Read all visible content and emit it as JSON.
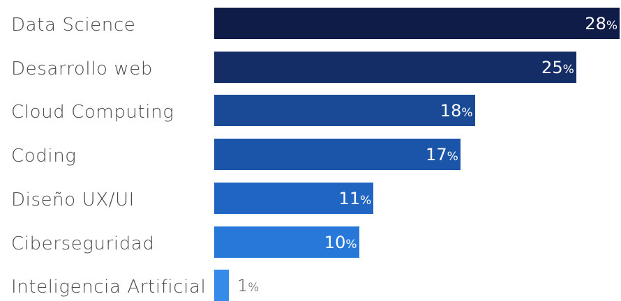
{
  "chart_data": {
    "type": "bar",
    "orientation": "horizontal",
    "title": "",
    "xlabel": "",
    "ylabel": "",
    "categories": [
      "Data Science",
      "Desarrollo web",
      "Cloud Computing",
      "Coding",
      "Diseño UX/UI",
      "Ciberseguridad",
      "Inteligencia Artificial"
    ],
    "values": [
      28,
      25,
      18,
      17,
      11,
      10,
      1
    ],
    "value_suffix": "%",
    "xlim": [
      0,
      28
    ],
    "grid": false,
    "legend": "none",
    "colors": [
      "#101c48",
      "#152d66",
      "#1a4a96",
      "#1b55aa",
      "#2165c2",
      "#2878d9",
      "#348be9"
    ]
  }
}
